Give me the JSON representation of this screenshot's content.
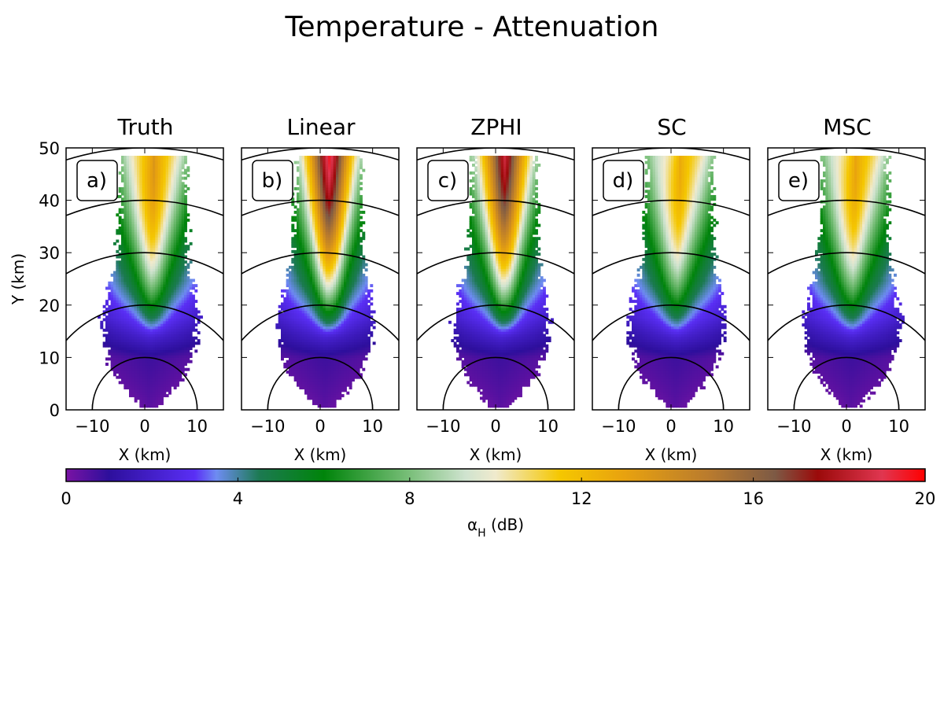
{
  "figure": {
    "title": "Temperature - Attenuation"
  },
  "chart_data": {
    "type": "heatmap",
    "title": "Temperature - Attenuation",
    "xlabel": "X (km)",
    "ylabel": "Y (km)",
    "xlim": [
      -15,
      15
    ],
    "ylim": [
      0,
      50
    ],
    "xticks": [
      -10,
      0,
      10
    ],
    "yticks": [
      0,
      10,
      20,
      30,
      40,
      50
    ],
    "range_rings_km": [
      10,
      20,
      30,
      40,
      50
    ],
    "grid": false,
    "panels": [
      {
        "id": "a",
        "label": "a)",
        "title": "Truth",
        "core_max_db": 13.5,
        "core_x": 1.5
      },
      {
        "id": "b",
        "label": "b)",
        "title": "Linear",
        "core_max_db": 19.5,
        "core_x": 1.8
      },
      {
        "id": "c",
        "label": "c)",
        "title": "ZPHI",
        "core_max_db": 18.5,
        "core_x": 1.8
      },
      {
        "id": "d",
        "label": "d)",
        "title": "SC",
        "core_max_db": 12.5,
        "core_x": 1.0
      },
      {
        "id": "e",
        "label": "e)",
        "title": "MSC",
        "core_max_db": 12.8,
        "core_x": 1.0
      }
    ],
    "colorbar": {
      "label_main": "α",
      "label_sub": "H",
      "label_unit": " (dB)",
      "min": 0,
      "max": 20,
      "ticks": [
        0,
        4,
        8,
        12,
        16,
        20
      ],
      "colors": [
        [
          0.0,
          "#7a13a4"
        ],
        [
          1.0,
          "#2d0f9c"
        ],
        [
          3.0,
          "#5a2ff5"
        ],
        [
          3.5,
          "#6e8cf2"
        ],
        [
          4.5,
          "#1c7a52"
        ],
        [
          6.0,
          "#00840a"
        ],
        [
          8.0,
          "#7abf7a"
        ],
        [
          9.3,
          "#cfe3cf"
        ],
        [
          10.0,
          "#f0eacd"
        ],
        [
          11.5,
          "#f5c700"
        ],
        [
          13.0,
          "#e8a20f"
        ],
        [
          15.0,
          "#b87a2e"
        ],
        [
          16.5,
          "#7d5a45"
        ],
        [
          17.5,
          "#9b0a0a"
        ],
        [
          19.0,
          "#e03650"
        ],
        [
          20.0,
          "#ff0000"
        ]
      ]
    }
  }
}
